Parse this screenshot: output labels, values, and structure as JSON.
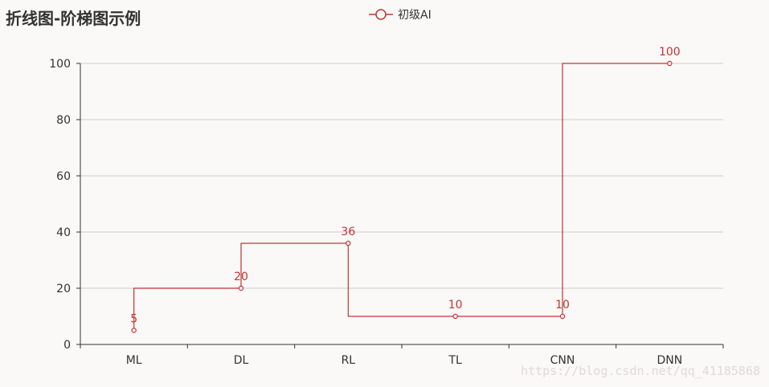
{
  "chart_data": {
    "type": "line",
    "step": "start",
    "title": "折线图-阶梯图示例",
    "categories": [
      "ML",
      "DL",
      "RL",
      "TL",
      "CNN",
      "DNN"
    ],
    "series": [
      {
        "name": "初级AI",
        "values": [
          5,
          20,
          36,
          10,
          10,
          100
        ]
      }
    ],
    "ylim": [
      0,
      100
    ],
    "yticks": [
      0,
      20,
      40,
      60,
      80,
      100
    ],
    "xlabel": "",
    "ylabel": "",
    "grid": true,
    "legend_position": "top-center",
    "show_data_labels": true,
    "colors": {
      "series": "#c23531",
      "text": "#333333",
      "grid": "#cccccc",
      "axis": "#333333",
      "background": "#fbf8f8"
    }
  },
  "watermark": "https://blog.csdn.net/qq_41185868"
}
